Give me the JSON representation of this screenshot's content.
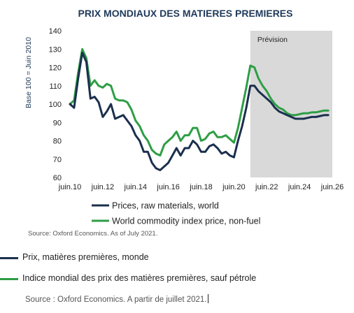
{
  "chart_data": {
    "type": "line",
    "title": "PRIX MONDIAUX DES MATIERES PREMIERES",
    "ylabel": "Base 100 = Juin 2010",
    "xlabel": "",
    "ylim": [
      60,
      140
    ],
    "yticks": [
      "60",
      "70",
      "80",
      "90",
      "100",
      "110",
      "120",
      "130",
      "140"
    ],
    "x_tick_labels": [
      "juin.10",
      "juin.12",
      "juin.14",
      "juin.16",
      "juin.18",
      "juin.20",
      "juin.22",
      "juin.24",
      "juin.26"
    ],
    "x_tick_years": [
      2010.5,
      2012.5,
      2014.5,
      2016.5,
      2018.5,
      2020.5,
      2022.5,
      2024.5,
      2026.5
    ],
    "xlim": [
      2010.5,
      2026.5
    ],
    "forecast_label": "Prévision",
    "forecast_start": 2021.5,
    "grid": false,
    "legend_position": "bottom",
    "series": [
      {
        "name": "Prices, raw materials, world",
        "color": "#1b2f4e",
        "x": [
          2010.5,
          2010.75,
          2011.0,
          2011.25,
          2011.5,
          2011.75,
          2012.0,
          2012.25,
          2012.5,
          2012.75,
          2013.0,
          2013.25,
          2013.5,
          2013.75,
          2014.0,
          2014.25,
          2014.5,
          2014.75,
          2015.0,
          2015.25,
          2015.5,
          2015.75,
          2016.0,
          2016.25,
          2016.5,
          2016.75,
          2017.0,
          2017.25,
          2017.5,
          2017.75,
          2018.0,
          2018.25,
          2018.5,
          2018.75,
          2019.0,
          2019.25,
          2019.5,
          2019.75,
          2020.0,
          2020.25,
          2020.5,
          2020.75,
          2021.0,
          2021.25,
          2021.5,
          2021.75,
          2022.0,
          2022.25,
          2022.5,
          2022.75,
          2023.0,
          2023.25,
          2023.5,
          2023.75,
          2024.0,
          2024.25,
          2024.5,
          2024.75,
          2025.0,
          2025.25,
          2025.5,
          2025.75,
          2026.0,
          2026.25
        ],
        "values": [
          100,
          98,
          114,
          128,
          123,
          103,
          104,
          101,
          93,
          96,
          100,
          92,
          93,
          94,
          91,
          88,
          83,
          80,
          74,
          74,
          68,
          65,
          64,
          66,
          68,
          72,
          76,
          72,
          76,
          76,
          80,
          78,
          74,
          74,
          77,
          78,
          76,
          73,
          74,
          72,
          71,
          80,
          88,
          98,
          110,
          110,
          107,
          105,
          103,
          101,
          98,
          96,
          95,
          94,
          93,
          92,
          92,
          92,
          92.5,
          93,
          93,
          93.5,
          94,
          94
        ]
      },
      {
        "name": "World commodity index price, non-fuel",
        "color": "#2e9e45",
        "x": [
          2010.5,
          2010.75,
          2011.0,
          2011.25,
          2011.5,
          2011.75,
          2012.0,
          2012.25,
          2012.5,
          2012.75,
          2013.0,
          2013.25,
          2013.5,
          2013.75,
          2014.0,
          2014.25,
          2014.5,
          2014.75,
          2015.0,
          2015.25,
          2015.5,
          2015.75,
          2016.0,
          2016.25,
          2016.5,
          2016.75,
          2017.0,
          2017.25,
          2017.5,
          2017.75,
          2018.0,
          2018.25,
          2018.5,
          2018.75,
          2019.0,
          2019.25,
          2019.5,
          2019.75,
          2020.0,
          2020.25,
          2020.5,
          2020.75,
          2021.0,
          2021.25,
          2021.5,
          2021.75,
          2022.0,
          2022.25,
          2022.5,
          2022.75,
          2023.0,
          2023.25,
          2023.5,
          2023.75,
          2024.0,
          2024.25,
          2024.5,
          2024.75,
          2025.0,
          2025.25,
          2025.5,
          2025.75,
          2026.0,
          2026.25
        ],
        "values": [
          100,
          102,
          117,
          130,
          125,
          110,
          113,
          110,
          109,
          111,
          110,
          103,
          102,
          102,
          101,
          97,
          91,
          88,
          83,
          80,
          75,
          73,
          72,
          78,
          80,
          82,
          85,
          80,
          83,
          83,
          87,
          87,
          80,
          81,
          84,
          85,
          82,
          82,
          83,
          81,
          79,
          87,
          98,
          109,
          121,
          120,
          114,
          110,
          107,
          103,
          100,
          98,
          97,
          95,
          94,
          94,
          94.5,
          95,
          95,
          95.5,
          95.5,
          96,
          96.5,
          96.5
        ]
      }
    ],
    "source": "Source: Oxford Economics. As of July 2021."
  },
  "legend_fr": [
    {
      "label": "Prix, matières premières, monde",
      "color": "#1b2f4e"
    },
    {
      "label": "Indice mondial des prix des matières premières, sauf pétrole",
      "color": "#2e9e45"
    }
  ],
  "source_fr": "Source : Oxford Economics. A partir de juillet 2021."
}
